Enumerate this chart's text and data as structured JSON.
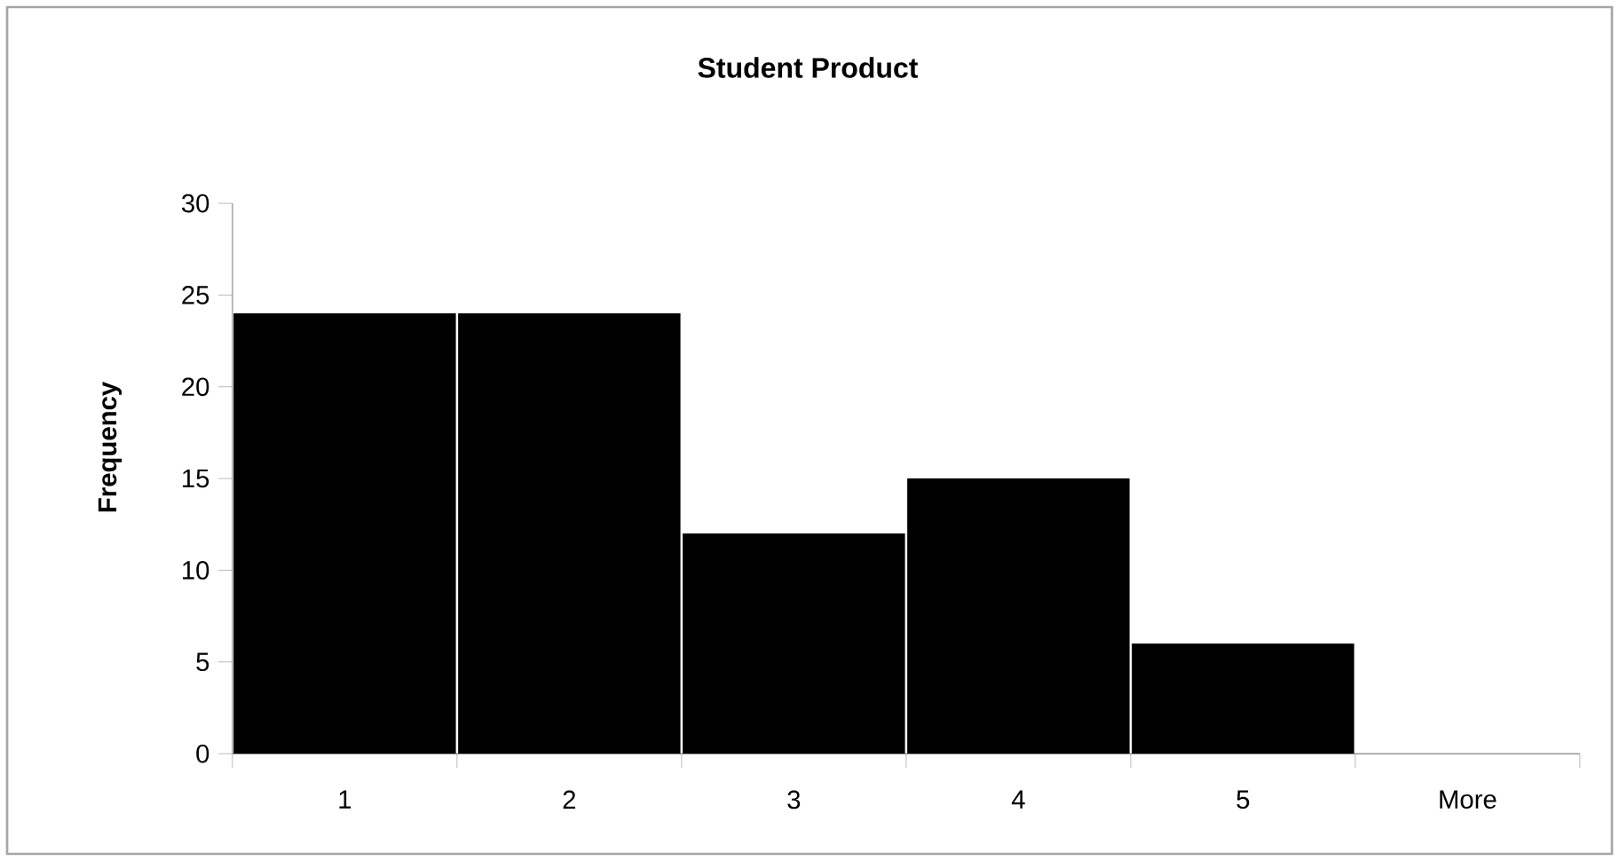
{
  "chart_data": {
    "type": "bar",
    "title": "Student Product",
    "ylabel": "Frequency",
    "categories": [
      "1",
      "2",
      "3",
      "4",
      "5",
      "More"
    ],
    "values": [
      24,
      24,
      12,
      15,
      6,
      0
    ],
    "color": "#000000",
    "ylim": [
      0,
      30
    ],
    "yticks": [
      0,
      5,
      10,
      15,
      20,
      25,
      30
    ],
    "grid": false
  }
}
